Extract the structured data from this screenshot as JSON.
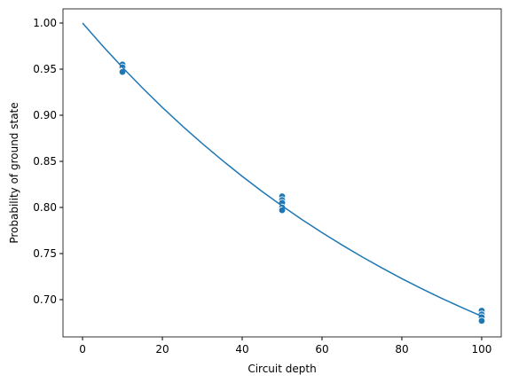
{
  "chart_data": {
    "type": "scatter",
    "xlabel": "Circuit depth",
    "ylabel": "Probability of ground state",
    "xlim": [
      -4.9,
      104.9
    ],
    "ylim": [
      0.6596,
      1.0154
    ],
    "xticks": [
      0,
      20,
      40,
      60,
      80,
      100
    ],
    "yticks": [
      {
        "value": 0.7,
        "label": "0.70"
      },
      {
        "value": 0.75,
        "label": "0.75"
      },
      {
        "value": 0.8,
        "label": "0.80"
      },
      {
        "value": 0.85,
        "label": "0.85"
      },
      {
        "value": 0.9,
        "label": "0.90"
      },
      {
        "value": 0.95,
        "label": "0.95"
      },
      {
        "value": 1.0,
        "label": "1.00"
      }
    ],
    "series": [
      {
        "type": "scatter",
        "color": "#1f77b4",
        "x": [
          10,
          10,
          10,
          10,
          50,
          50,
          50,
          50,
          50,
          100,
          100,
          100,
          100
        ],
        "values": [
          0.955,
          0.952,
          0.948,
          0.947,
          0.812,
          0.808,
          0.805,
          0.8,
          0.797,
          0.688,
          0.684,
          0.681,
          0.677
        ]
      },
      {
        "type": "line",
        "color": "#1f77b4",
        "x": [
          0,
          5,
          10,
          15,
          20,
          25,
          30,
          35,
          40,
          45,
          50,
          55,
          60,
          65,
          70,
          75,
          80,
          85,
          90,
          95,
          100
        ],
        "values": [
          1.0,
          0.9754,
          0.9519,
          0.9297,
          0.9085,
          0.8884,
          0.8693,
          0.8511,
          0.8338,
          0.8173,
          0.8017,
          0.7868,
          0.7727,
          0.7593,
          0.7465,
          0.7344,
          0.7228,
          0.7118,
          0.7014,
          0.6915,
          0.682
        ]
      }
    ]
  }
}
